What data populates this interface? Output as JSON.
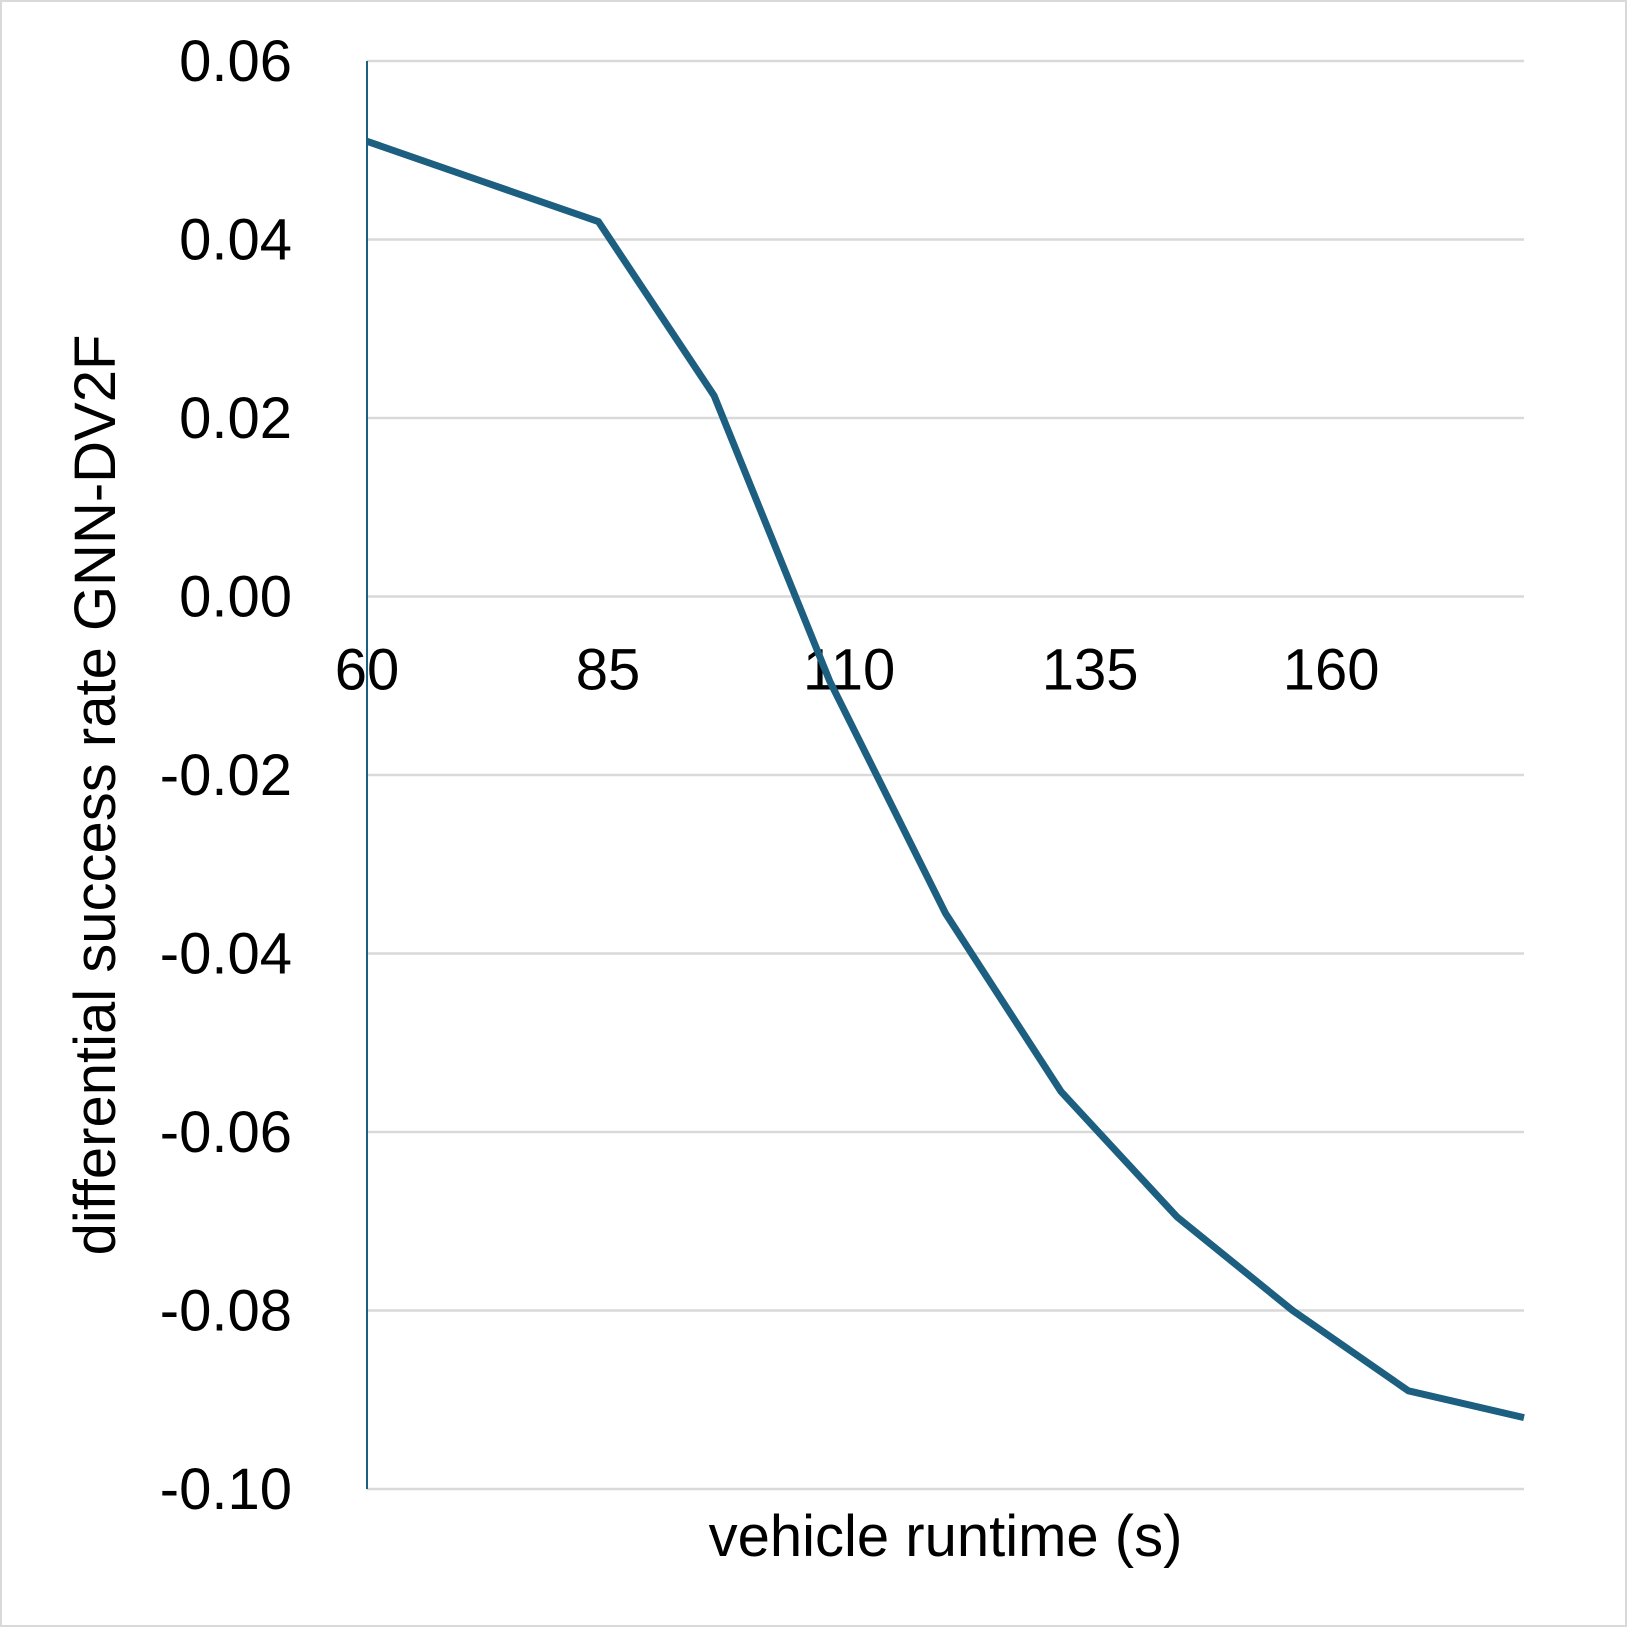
{
  "chart_data": {
    "type": "line",
    "title": "",
    "xlabel": "vehicle runtime (s)",
    "ylabel": "differential success rate GNN-DV2F",
    "x_tick_labels": [
      "60",
      "85",
      "110",
      "135",
      "160"
    ],
    "y_tick_labels": [
      "0.06",
      "0.04",
      "0.02",
      "0.00",
      "-0.02",
      "-0.04",
      "-0.06",
      "-0.08",
      "-0.10"
    ],
    "xlim": [
      60,
      180
    ],
    "ylim": [
      -0.1,
      0.06
    ],
    "grid": true,
    "legend": "none",
    "series": [
      {
        "color": "#1d5f80",
        "x": [
          60,
          72,
          84,
          96,
          108,
          120,
          132,
          144,
          156,
          168,
          180
        ],
        "y": [
          0.051,
          0.0465,
          0.042,
          0.0225,
          -0.0095,
          -0.0355,
          -0.0555,
          -0.0695,
          -0.08,
          -0.089,
          -0.092
        ]
      }
    ]
  }
}
